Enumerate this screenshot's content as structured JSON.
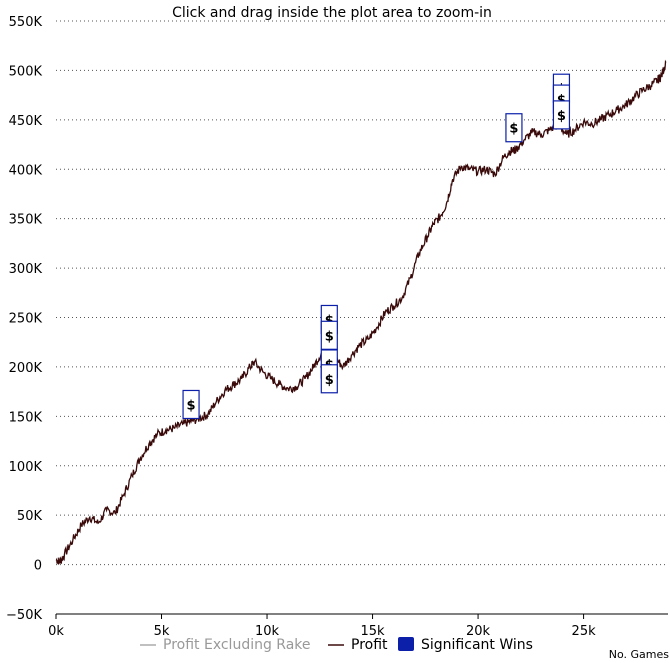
{
  "chart_data": {
    "type": "line",
    "title": "Click and drag inside the plot area to zoom-in",
    "xlabel": "No. Games",
    "ylabel": "",
    "xlim": [
      0,
      29000
    ],
    "ylim": [
      -50000,
      550000
    ],
    "grid": true,
    "legend_placement": "bottom-center",
    "y_ticks": [
      -50000,
      0,
      50000,
      100000,
      150000,
      200000,
      250000,
      300000,
      350000,
      400000,
      450000,
      500000,
      550000
    ],
    "y_tick_labels": [
      "−50K",
      "0",
      "50K",
      "100K",
      "150K",
      "200K",
      "250K",
      "300K",
      "350K",
      "400K",
      "450K",
      "500K",
      "550K"
    ],
    "x_ticks": [
      0,
      5000,
      10000,
      15000,
      20000,
      25000
    ],
    "x_tick_labels": [
      "0k",
      "5k",
      "10k",
      "15k",
      "20k",
      "25k"
    ],
    "series": [
      {
        "name": "Profit",
        "color": "#3a0a0a",
        "x": [
          0,
          200,
          400,
          800,
          1200,
          1600,
          2000,
          2400,
          2800,
          3200,
          3600,
          4000,
          4400,
          4800,
          5200,
          5600,
          6000,
          6400,
          6800,
          7200,
          7600,
          8000,
          8400,
          8800,
          9200,
          9400,
          9800,
          10200,
          10600,
          11000,
          11400,
          11800,
          12200,
          12600,
          12900,
          13200,
          13600,
          14000,
          14400,
          14800,
          15200,
          15600,
          16000,
          16400,
          16800,
          17200,
          17600,
          17900,
          18200,
          18500,
          18800,
          19200,
          19600,
          20000,
          20400,
          20800,
          21200,
          21500,
          21800,
          22200,
          22600,
          23000,
          23400,
          23800,
          24200,
          24600,
          25000,
          25400,
          25800,
          26200,
          26600,
          27000,
          27400,
          27800,
          28200,
          28500,
          28700,
          28900
        ],
        "values": [
          5000,
          3000,
          10000,
          25000,
          40000,
          48000,
          42000,
          55000,
          52000,
          70000,
          90000,
          108000,
          122000,
          132000,
          136000,
          138000,
          142000,
          145000,
          148000,
          152000,
          165000,
          176000,
          182000,
          188000,
          200000,
          205000,
          195000,
          188000,
          182000,
          178000,
          180000,
          188000,
          200000,
          215000,
          218000,
          210000,
          200000,
          212000,
          222000,
          228000,
          240000,
          255000,
          262000,
          270000,
          290000,
          315000,
          332000,
          345000,
          352000,
          365000,
          390000,
          403000,
          400000,
          398000,
          400000,
          395000,
          412000,
          418000,
          420000,
          430000,
          438000,
          435000,
          440000,
          445000,
          435000,
          440000,
          448000,
          446000,
          450000,
          455000,
          460000,
          465000,
          473000,
          480000,
          485000,
          490000,
          495000,
          508000
        ]
      },
      {
        "name": "Profit Excluding Rake",
        "color": "#aaaaaa",
        "hidden": true
      },
      {
        "name": "Significant Wins",
        "color": "#0b1fa8",
        "type": "flags",
        "symbol": "$",
        "points": [
          {
            "x": 6400,
            "y": 162000
          },
          {
            "x": 12950,
            "y": 248000
          },
          {
            "x": 12950,
            "y": 232000
          },
          {
            "x": 12950,
            "y": 203000
          },
          {
            "x": 12950,
            "y": 188000
          },
          {
            "x": 21700,
            "y": 442000
          },
          {
            "x": 23950,
            "y": 482000
          },
          {
            "x": 23950,
            "y": 471000
          },
          {
            "x": 23950,
            "y": 455000
          }
        ]
      }
    ]
  }
}
